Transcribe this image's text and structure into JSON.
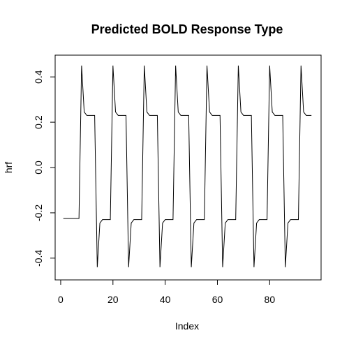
{
  "chart_data": {
    "type": "line",
    "title": "Predicted BOLD Response Type",
    "xlabel": "Index",
    "ylabel": "hrf",
    "xlim": [
      1,
      96
    ],
    "ylim": [
      -0.46,
      0.46
    ],
    "grid": false,
    "x_ticks": [
      {
        "value": 0,
        "label": "0"
      },
      {
        "value": 20,
        "label": "20"
      },
      {
        "value": 40,
        "label": "40"
      },
      {
        "value": 60,
        "label": "60"
      },
      {
        "value": 80,
        "label": "80"
      }
    ],
    "y_ticks": [
      {
        "value": -0.4,
        "label": "-0.4"
      },
      {
        "value": -0.2,
        "label": "-0.2"
      },
      {
        "value": 0.0,
        "label": "0.0"
      },
      {
        "value": 0.2,
        "label": "0.2"
      },
      {
        "value": 0.4,
        "label": "0.4"
      }
    ],
    "series": [
      {
        "color": "#000000",
        "x": [
          1,
          2,
          3,
          4,
          5,
          6,
          7,
          8,
          9,
          10,
          11,
          12,
          13,
          14,
          15,
          16,
          17,
          18,
          19,
          20,
          21,
          22,
          23,
          24,
          25,
          26,
          27,
          28,
          29,
          30,
          31,
          32,
          33,
          34,
          35,
          36,
          37,
          38,
          39,
          40,
          41,
          42,
          43,
          44,
          45,
          46,
          47,
          48,
          49,
          50,
          51,
          52,
          53,
          54,
          55,
          56,
          57,
          58,
          59,
          60,
          61,
          62,
          63,
          64,
          65,
          66,
          67,
          68,
          69,
          70,
          71,
          72,
          73,
          74,
          75,
          76,
          77,
          78,
          79,
          80,
          81,
          82,
          83,
          84,
          85,
          86,
          87,
          88,
          89,
          90,
          91,
          92,
          93,
          94,
          95,
          96
        ],
        "values": [
          -0.225,
          -0.225,
          -0.225,
          -0.225,
          -0.225,
          -0.225,
          -0.225,
          0.45,
          0.245,
          0.23,
          0.23,
          0.23,
          0.23,
          -0.44,
          -0.245,
          -0.23,
          -0.23,
          -0.23,
          -0.23,
          0.45,
          0.245,
          0.23,
          0.23,
          0.23,
          0.23,
          -0.44,
          -0.245,
          -0.23,
          -0.23,
          -0.23,
          -0.23,
          0.45,
          0.245,
          0.23,
          0.23,
          0.23,
          0.23,
          -0.44,
          -0.245,
          -0.23,
          -0.23,
          -0.23,
          -0.23,
          0.45,
          0.245,
          0.23,
          0.23,
          0.23,
          0.23,
          -0.44,
          -0.245,
          -0.23,
          -0.23,
          -0.23,
          -0.23,
          0.45,
          0.245,
          0.23,
          0.23,
          0.23,
          0.23,
          -0.44,
          -0.245,
          -0.23,
          -0.23,
          -0.23,
          -0.23,
          0.45,
          0.245,
          0.23,
          0.23,
          0.23,
          0.23,
          -0.44,
          -0.245,
          -0.23,
          -0.23,
          -0.23,
          -0.23,
          0.45,
          0.245,
          0.23,
          0.23,
          0.23,
          0.23,
          -0.44,
          -0.245,
          -0.23,
          -0.23,
          -0.23,
          -0.23,
          0.45,
          0.245,
          0.23,
          0.23,
          0.23
        ]
      }
    ]
  }
}
